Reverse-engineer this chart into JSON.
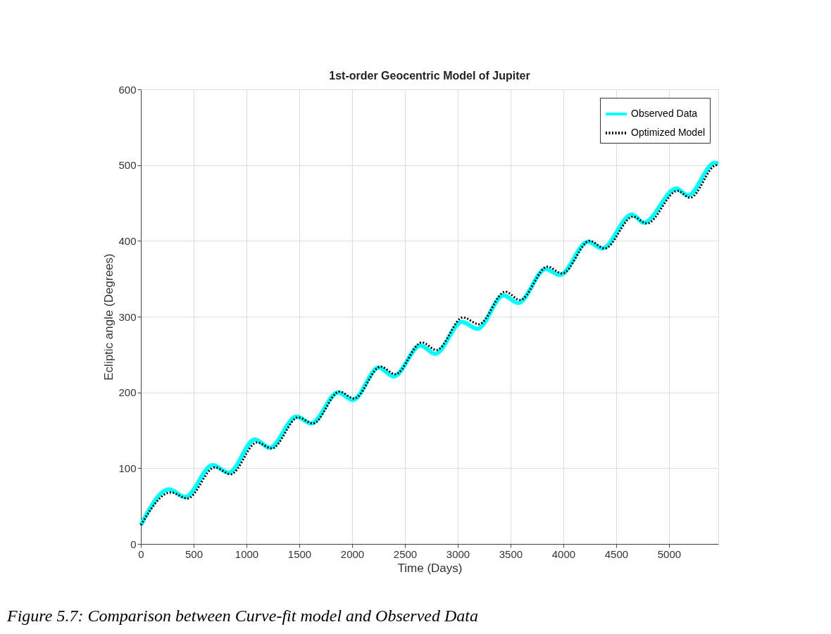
{
  "chart_data": {
    "type": "line",
    "title": "1st-order Geocentric Model of Jupiter",
    "xlabel": "Time (Days)",
    "ylabel": "Ecliptic angle (Degrees)",
    "xlim": [
      0,
      5467
    ],
    "ylim": [
      0,
      600
    ],
    "xticks": [
      0,
      500,
      1000,
      1500,
      2000,
      2500,
      3000,
      3500,
      4000,
      4500,
      5000
    ],
    "yticks": [
      0,
      100,
      200,
      300,
      400,
      500,
      600
    ],
    "grid": true,
    "legend": "top right",
    "annotations": [
      "Figure 5.7:  Comparison between Curve-fit model and Observed Data"
    ],
    "series": [
      {
        "name": "Observed Data",
        "color": "#00ffff",
        "line_style": "solid",
        "x": [
          0,
          267,
          420,
          680,
          833,
          1080,
          1220,
          1473,
          1613,
          1867,
          2007,
          2253,
          2393,
          2647,
          2787,
          3040,
          3187,
          3433,
          3573,
          3833,
          3967,
          4233,
          4367,
          4650,
          4760,
          5070,
          5180,
          5433,
          5467
        ],
        "values": [
          25,
          72,
          62,
          104,
          94,
          138,
          127,
          168,
          159,
          200,
          190,
          233,
          221,
          262,
          251,
          293,
          284,
          328,
          318,
          363,
          355,
          399,
          390,
          435,
          424,
          469,
          460,
          503,
          502
        ]
      },
      {
        "name": "Optimized Model",
        "color": "#000000",
        "line_style": "dotted",
        "x": [
          0,
          285,
          440,
          700,
          850,
          1100,
          1240,
          1490,
          1630,
          1880,
          2020,
          2270,
          2410,
          2660,
          2800,
          3050,
          3200,
          3450,
          3590,
          3850,
          3990,
          4250,
          4390,
          4660,
          4790,
          5080,
          5200,
          5450,
          5467
        ],
        "values": [
          25,
          68,
          60,
          101,
          92,
          134,
          126,
          167,
          159,
          201,
          192,
          234,
          224,
          266,
          256,
          299,
          290,
          333,
          322,
          366,
          357,
          400,
          390,
          432,
          423,
          466,
          457,
          500,
          500
        ]
      }
    ]
  }
}
